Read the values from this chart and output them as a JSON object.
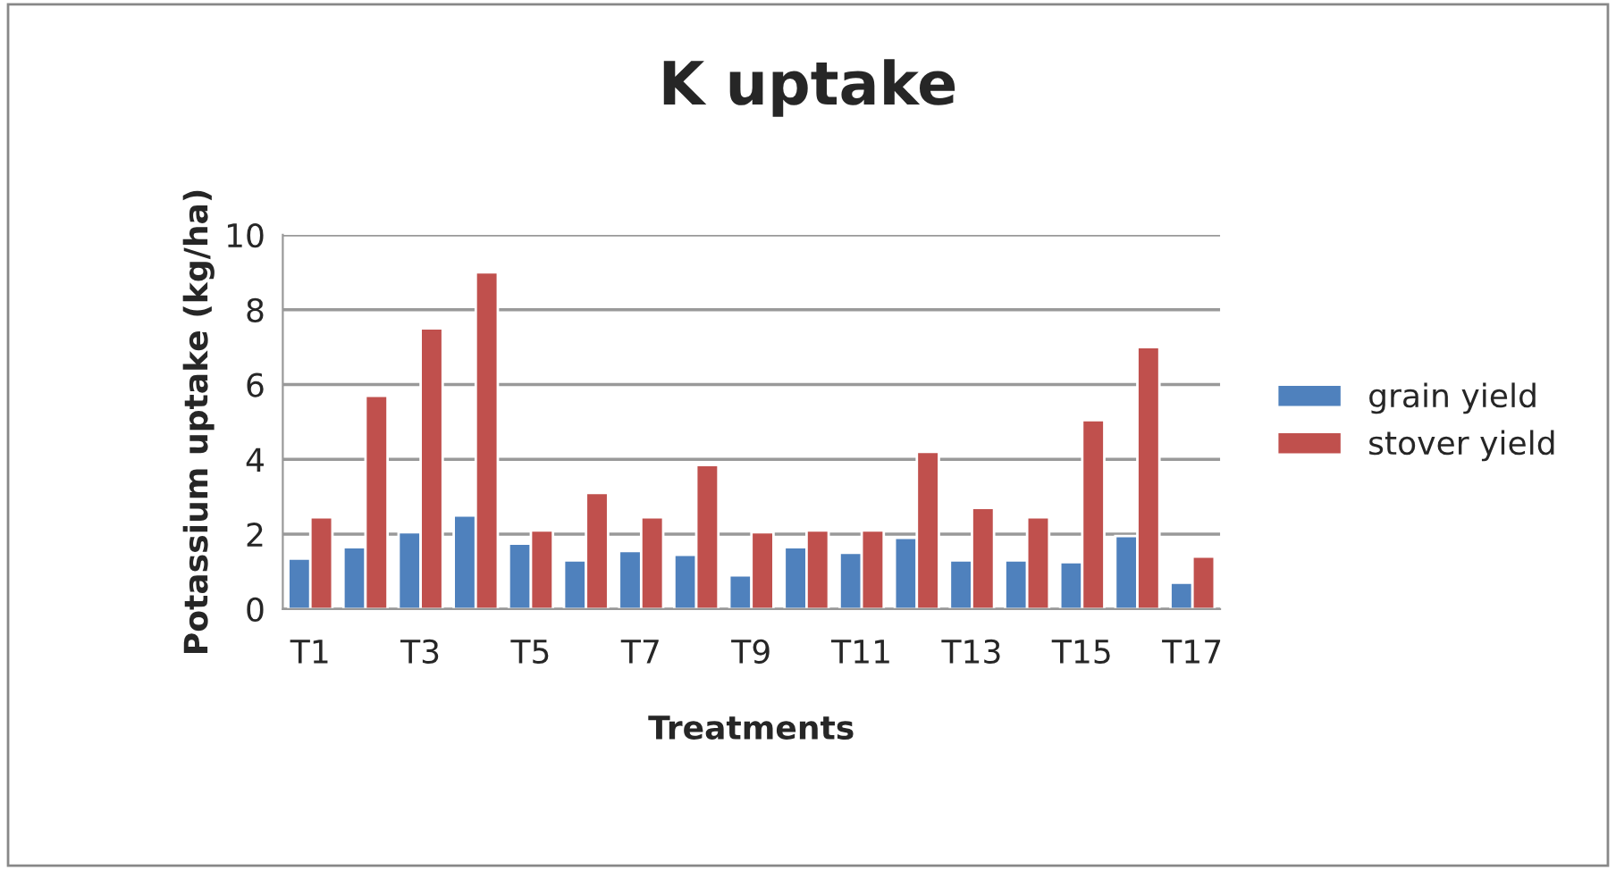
{
  "chart_data": {
    "type": "bar",
    "title": "K uptake",
    "xlabel": "Treatments",
    "ylabel": "Potassium uptake (kg/ha)",
    "categories": [
      "T1",
      null,
      "T3",
      null,
      "T5",
      null,
      "T7",
      null,
      "T9",
      null,
      "T11",
      null,
      "T13",
      null,
      "T15",
      null,
      "T17"
    ],
    "series": [
      {
        "name": "grain yield",
        "color": "#4f81bd",
        "values": [
          1.35,
          1.65,
          2.05,
          2.5,
          1.75,
          1.3,
          1.55,
          1.45,
          0.9,
          1.65,
          1.5,
          1.9,
          1.3,
          1.3,
          1.25,
          1.95,
          0.7
        ]
      },
      {
        "name": "stover yield",
        "color": "#c0504d",
        "values": [
          2.45,
          5.7,
          7.5,
          9.0,
          2.1,
          3.1,
          2.45,
          3.85,
          2.05,
          2.1,
          2.1,
          4.2,
          2.7,
          2.45,
          5.05,
          7.0,
          1.4
        ]
      }
    ],
    "ylim": [
      0,
      10
    ],
    "yticks": [
      0,
      2,
      4,
      6,
      8,
      10
    ],
    "grid": "y",
    "legend": "right"
  }
}
